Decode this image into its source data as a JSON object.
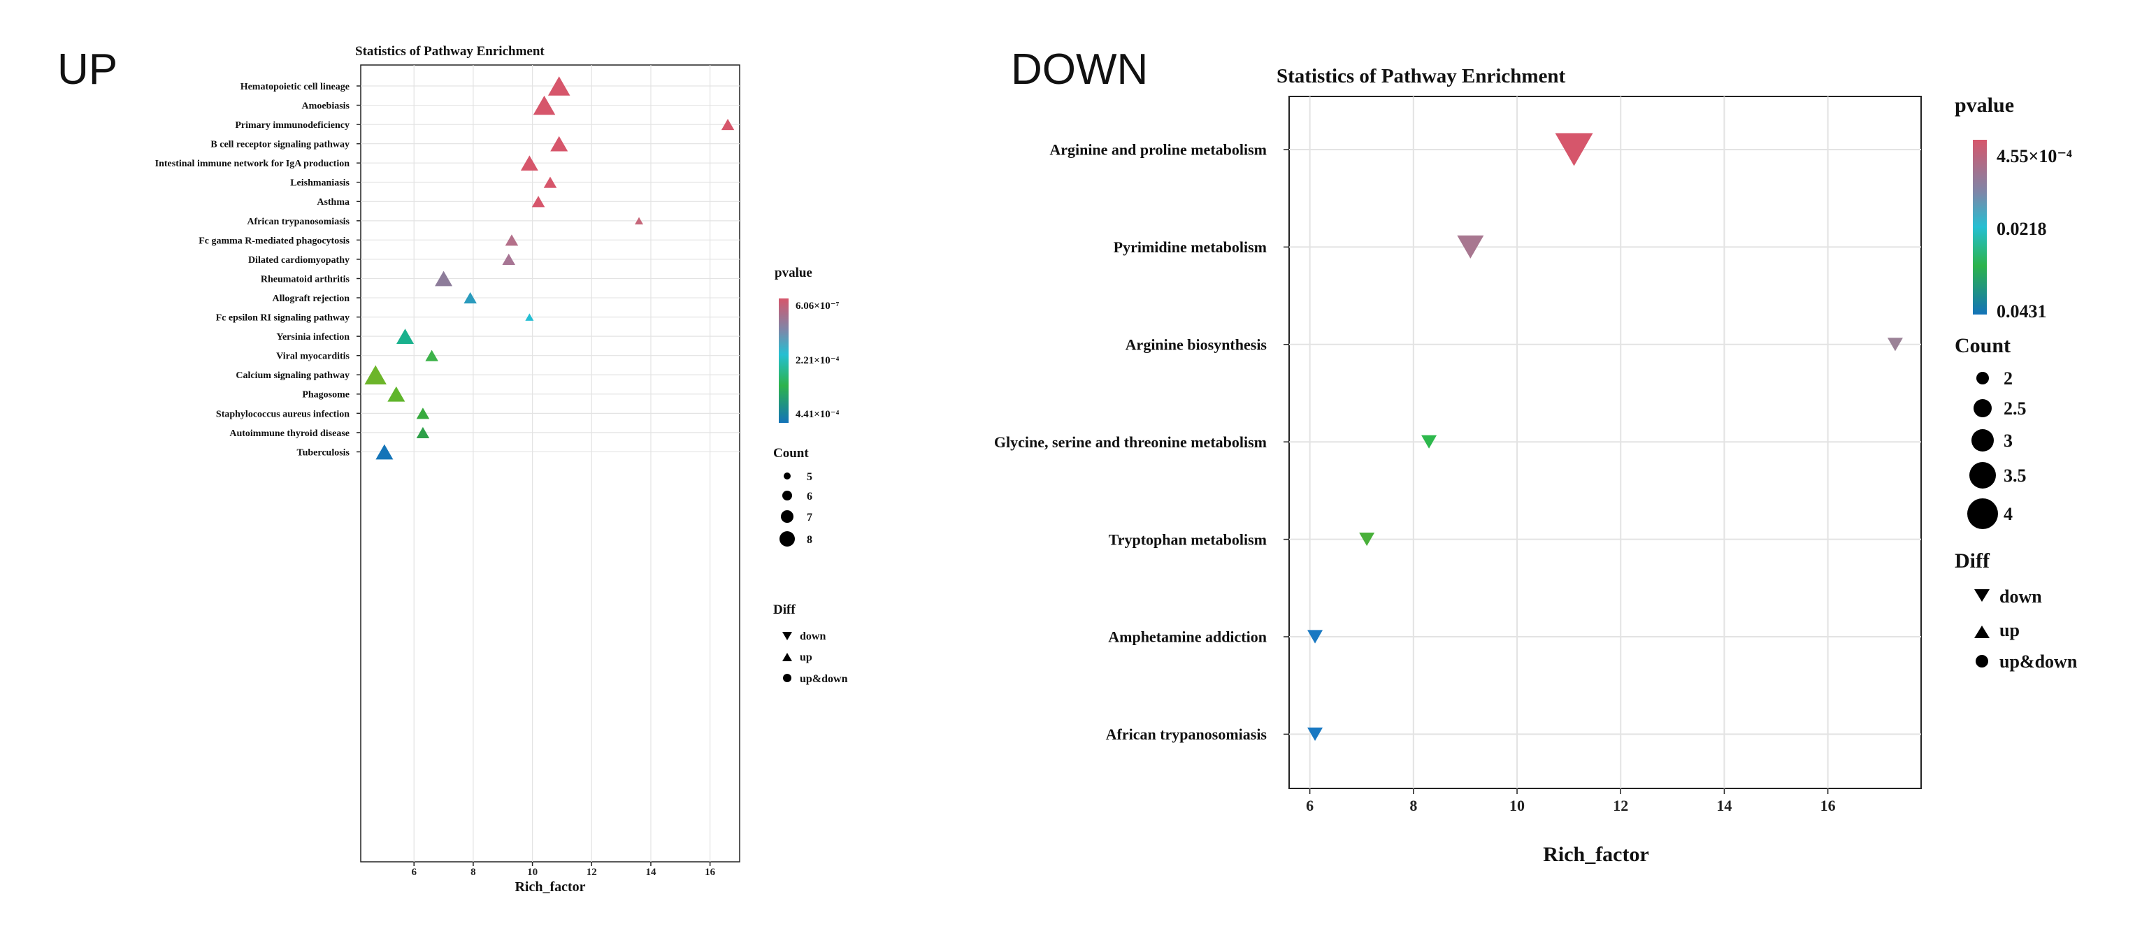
{
  "panels": [
    {
      "heading": "UP"
    },
    {
      "heading": "DOWN"
    }
  ],
  "chart_data": [
    {
      "type": "scatter",
      "title": "Statistics of Pathway Enrichment",
      "xlabel": "Rich_factor",
      "ylabel": "",
      "xlim": [
        4.2,
        17.0
      ],
      "xticks": [
        6,
        8,
        10,
        12,
        14,
        16
      ],
      "categories": [
        "Hematopoietic cell lineage",
        "Amoebiasis",
        "Primary immunodeficiency",
        "B cell receptor signaling pathway",
        "Intestinal immune network for IgA production",
        "Leishmaniasis",
        "Asthma",
        "African trypanosomiasis",
        "Fc gamma R-mediated phagocytosis",
        "Dilated cardiomyopathy",
        "Rheumatoid arthritis",
        "Allograft rejection",
        "Fc epsilon RI signaling pathway",
        "Yersinia infection",
        "Viral myocarditis",
        "Calcium signaling pathway",
        "Phagosome",
        "Staphylococcus aureus infection",
        "Autoimmune thyroid disease",
        "Tuberculosis"
      ],
      "series": [
        {
          "name": "up",
          "points": [
            {
              "pathway": "Hematopoietic cell lineage",
              "rich_factor": 10.9,
              "count": 8,
              "color": "#d6566b"
            },
            {
              "pathway": "Amoebiasis",
              "rich_factor": 10.4,
              "count": 8,
              "color": "#d6566b"
            },
            {
              "pathway": "Primary immunodeficiency",
              "rich_factor": 16.6,
              "count": 6,
              "color": "#d6566b"
            },
            {
              "pathway": "B cell receptor signaling pathway",
              "rich_factor": 10.9,
              "count": 7,
              "color": "#d6566b"
            },
            {
              "pathway": "Intestinal immune network for IgA production",
              "rich_factor": 9.9,
              "count": 7,
              "color": "#d6566b"
            },
            {
              "pathway": "Leishmaniasis",
              "rich_factor": 10.6,
              "count": 6,
              "color": "#d6566b"
            },
            {
              "pathway": "Asthma",
              "rich_factor": 10.2,
              "count": 6,
              "color": "#d6566b"
            },
            {
              "pathway": "African trypanosomiasis",
              "rich_factor": 13.6,
              "count": 5,
              "color": "#c6677a"
            },
            {
              "pathway": "Fc gamma R-mediated phagocytosis",
              "rich_factor": 9.3,
              "count": 6,
              "color": "#b4708a"
            },
            {
              "pathway": "Dilated cardiomyopathy",
              "rich_factor": 9.2,
              "count": 6,
              "color": "#a77594"
            },
            {
              "pathway": "Rheumatoid arthritis",
              "rich_factor": 7.0,
              "count": 7,
              "color": "#8d7c9a"
            },
            {
              "pathway": "Allograft rejection",
              "rich_factor": 7.9,
              "count": 6,
              "color": "#2a9bbd"
            },
            {
              "pathway": "Fc epsilon RI signaling pathway",
              "rich_factor": 9.9,
              "count": 5,
              "color": "#24bed3"
            },
            {
              "pathway": "Yersinia infection",
              "rich_factor": 5.7,
              "count": 7,
              "color": "#19b18d"
            },
            {
              "pathway": "Viral myocarditis",
              "rich_factor": 6.6,
              "count": 6,
              "color": "#3db24a"
            },
            {
              "pathway": "Calcium signaling pathway",
              "rich_factor": 4.7,
              "count": 8,
              "color": "#6cb52a"
            },
            {
              "pathway": "Phagosome",
              "rich_factor": 5.4,
              "count": 7,
              "color": "#5fb52b"
            },
            {
              "pathway": "Staphylococcus aureus infection",
              "rich_factor": 6.3,
              "count": 6,
              "color": "#37aa3e"
            },
            {
              "pathway": "Autoimmune thyroid disease",
              "rich_factor": 6.3,
              "count": 6,
              "color": "#2ea049"
            },
            {
              "pathway": "Tuberculosis",
              "rich_factor": 5.0,
              "count": 7,
              "color": "#1474b8"
            }
          ]
        }
      ],
      "legend": {
        "color_title": "pvalue",
        "color_labels": [
          "6.06×10⁻⁷",
          "2.21×10⁻⁴",
          "4.41×10⁻⁴"
        ],
        "count_title": "Count",
        "count_labels": [
          "5",
          "6",
          "7",
          "8"
        ],
        "shape_title": "Diff",
        "shape_labels": [
          "down",
          "up",
          "up&down"
        ],
        "placement": "right"
      }
    },
    {
      "type": "scatter",
      "title": "Statistics of Pathway Enrichment",
      "xlabel": "Rich_factor",
      "ylabel": "",
      "xlim": [
        5.6,
        17.8
      ],
      "xticks": [
        6,
        8,
        10,
        12,
        14,
        16
      ],
      "categories": [
        "Arginine and proline metabolism",
        "Pyrimidine metabolism",
        "Arginine biosynthesis",
        "Glycine, serine and threonine metabolism",
        "Tryptophan metabolism",
        "Amphetamine addiction",
        "African trypanosomiasis"
      ],
      "series": [
        {
          "name": "down",
          "points": [
            {
              "pathway": "Arginine and proline metabolism",
              "rich_factor": 11.1,
              "count": 4,
              "color": "#d6566b"
            },
            {
              "pathway": "Pyrimidine metabolism",
              "rich_factor": 9.1,
              "count": 3,
              "color": "#a87790"
            },
            {
              "pathway": "Arginine biosynthesis",
              "rich_factor": 17.3,
              "count": 2,
              "color": "#9b8297"
            },
            {
              "pathway": "Glycine, serine and threonine metabolism",
              "rich_factor": 8.3,
              "count": 2,
              "color": "#2db84c"
            },
            {
              "pathway": "Tryptophan metabolism",
              "rich_factor": 7.1,
              "count": 2,
              "color": "#49b03a"
            },
            {
              "pathway": "Amphetamine addiction",
              "rich_factor": 6.1,
              "count": 2,
              "color": "#1878c2"
            },
            {
              "pathway": "African trypanosomiasis",
              "rich_factor": 6.1,
              "count": 2,
              "color": "#1878c2"
            }
          ]
        }
      ],
      "legend": {
        "color_title": "pvalue",
        "color_labels": [
          "4.55×10⁻⁴",
          "0.0218",
          "0.0431"
        ],
        "count_title": "Count",
        "count_labels": [
          "2",
          "2.5",
          "3",
          "3.5",
          "4"
        ],
        "shape_title": "Diff",
        "shape_labels": [
          "down",
          "up",
          "up&down"
        ],
        "placement": "right"
      }
    }
  ]
}
